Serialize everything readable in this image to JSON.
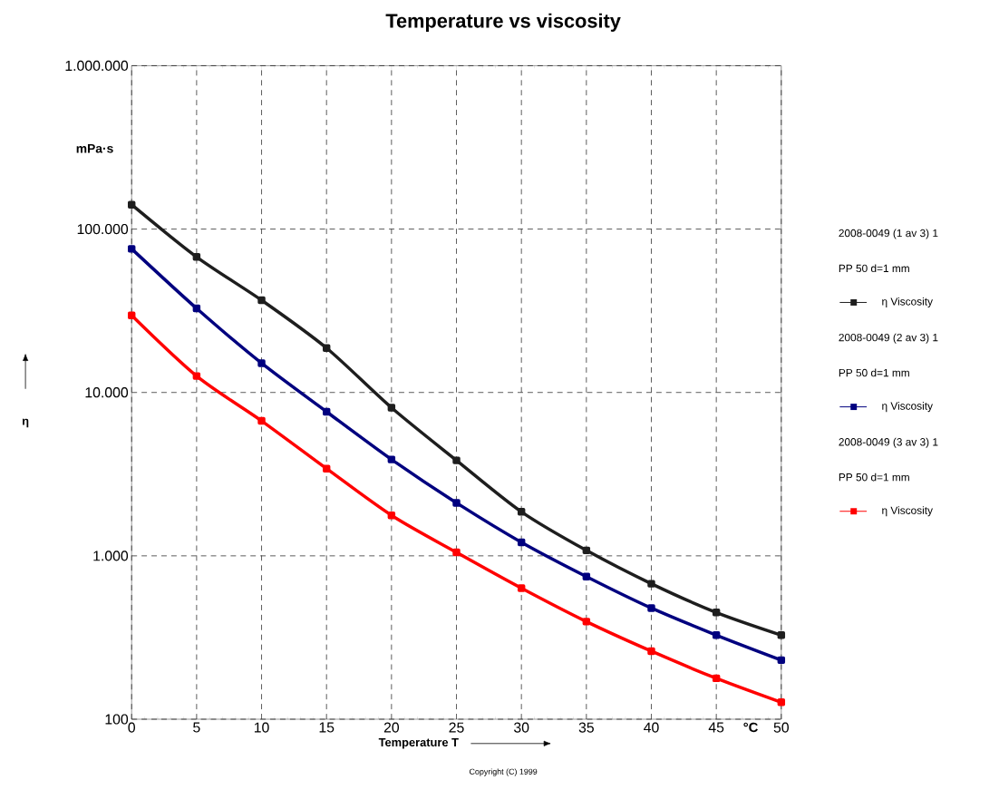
{
  "chart_data": {
    "type": "line",
    "title": "Temperature vs viscosity",
    "xlabel": "Temperature T",
    "ylabel": "η",
    "x": [
      0,
      5,
      10,
      15,
      20,
      25,
      30,
      35,
      40,
      45,
      50
    ],
    "series": [
      {
        "name": "η   Viscosity",
        "color": "#1e1e1e",
        "values": [
          141000,
          67500,
          36700,
          18700,
          8070,
          3840,
          1860,
          1080,
          675,
          450,
          327
        ]
      },
      {
        "name": "η   Viscosity",
        "color": "#00007f",
        "values": [
          75700,
          32700,
          15100,
          7620,
          3890,
          2110,
          1210,
          747,
          479,
          327,
          230
        ]
      },
      {
        "name": "η   Viscosity",
        "color": "#ff0000",
        "values": [
          29600,
          12600,
          6700,
          3420,
          1770,
          1050,
          634,
          396,
          261,
          178,
          127
        ]
      }
    ],
    "annotations": [
      "2008-0049 (1 av 3) 1",
      "PP 50 d=1 mm",
      "2008-0049 (2 av 3) 1",
      "PP 50 d=1 mm",
      "2008-0049 (3 av 3) 1",
      "PP 50 d=1 mm",
      "mPa·s",
      "°C",
      "Copyright (C) 1999"
    ],
    "xlim": [
      0,
      50
    ],
    "xticks": [
      0,
      5,
      10,
      15,
      20,
      25,
      30,
      35,
      40,
      45,
      50
    ],
    "ylim": [
      100,
      1000000
    ],
    "yticks": [
      {
        "value": 100,
        "label": "100"
      },
      {
        "value": 1000,
        "label": "1.000"
      },
      {
        "value": 10000,
        "label": "10.000"
      },
      {
        "value": 100000,
        "label": "100.000"
      },
      {
        "value": 1000000,
        "label": "1.000.000"
      }
    ],
    "log": "y",
    "grid": true,
    "legend": "right",
    "marker": "square",
    "line_style": "solid"
  }
}
